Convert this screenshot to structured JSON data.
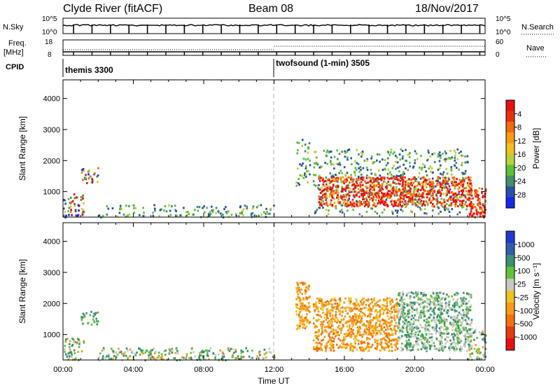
{
  "header": {
    "station": "Clyde River (fitACF)",
    "beam": "Beam 08",
    "date": "18/Nov/2017"
  },
  "noise_panel": {
    "left_label": "N.Sky",
    "left_ticks": [
      "10^5",
      "10^0"
    ],
    "right_label": "N.Search",
    "right_ticks": [
      "10^5",
      "10^0"
    ]
  },
  "freq_panel": {
    "left_label_1": "Freq.",
    "left_label_2": "[MHz]",
    "left_ticks": [
      "18",
      "8"
    ],
    "right_label": "Nave",
    "right_ticks": [
      "60",
      "0"
    ]
  },
  "cpid": {
    "label": "CPID",
    "programs": [
      {
        "name": "themis 3300",
        "start_hour": 0
      },
      {
        "name": "twofsound (1-min) 3505",
        "start_hour": 12
      }
    ]
  },
  "chart_data": [
    {
      "type": "heatmap",
      "quantity": "power",
      "xlabel": "",
      "ylabel": "Slant Range [km]",
      "xlim_hours": [
        0,
        24
      ],
      "ylim_km": [
        180,
        4600
      ],
      "yticks": [
        1000,
        2000,
        3000,
        4000
      ],
      "colorbar": {
        "label": "Power [dB]",
        "ticks": [
          "4",
          "8",
          "12",
          "16",
          "20",
          "24",
          "28"
        ],
        "colors": [
          "#1428e6",
          "#2b4fa8",
          "#3f8f6a",
          "#5cbf3a",
          "#b6d23a",
          "#f0c020",
          "#f59a18",
          "#f06a10",
          "#e53010",
          "#e61010"
        ]
      },
      "regions": [
        {
          "h0": 0.0,
          "h1": 1.2,
          "r0": 200,
          "r1": 950,
          "level": "mixed"
        },
        {
          "h0": 1.0,
          "h1": 2.0,
          "r0": 1300,
          "r1": 1800,
          "level": "mixed"
        },
        {
          "h0": 2.0,
          "h1": 12.0,
          "r0": 200,
          "r1": 600,
          "level": "weak"
        },
        {
          "h0": 13.2,
          "h1": 14.0,
          "r0": 1200,
          "r1": 2700,
          "level": "weak"
        },
        {
          "h0": 14.2,
          "h1": 23.0,
          "r0": 300,
          "r1": 2400,
          "level": "weak"
        },
        {
          "h0": 14.5,
          "h1": 23.2,
          "r0": 550,
          "r1": 1500,
          "level": "strong"
        },
        {
          "h0": 23.0,
          "h1": 24.0,
          "r0": 200,
          "r1": 1200,
          "level": "strong"
        }
      ]
    },
    {
      "type": "heatmap",
      "quantity": "velocity",
      "xlabel": "Time UT",
      "ylabel": "Slant Range [km]",
      "xlim_hours": [
        0,
        24
      ],
      "xticks": [
        "00:00",
        "04:00",
        "08:00",
        "12:00",
        "16:00",
        "20:00",
        "00:00"
      ],
      "ylim_km": [
        180,
        4600
      ],
      "yticks": [
        1000,
        2000,
        3000,
        4000
      ],
      "colorbar": {
        "label": "Velocity [m s⁻¹]",
        "ticks": [
          "1000",
          "500",
          "100",
          "25",
          "-25",
          "-100",
          "-500",
          "-1000"
        ],
        "colors": [
          "#1e3ad0",
          "#2f5fa8",
          "#3c8f70",
          "#62c33a",
          "#c8c8c0",
          "#f0c020",
          "#f59a18",
          "#f07010",
          "#e63a10",
          "#e61010"
        ]
      },
      "regions": [
        {
          "h0": 0.0,
          "h1": 1.2,
          "r0": 200,
          "r1": 900,
          "level": "mixed"
        },
        {
          "h0": 1.0,
          "h1": 2.0,
          "r0": 1300,
          "r1": 1800,
          "level": "green"
        },
        {
          "h0": 2.0,
          "h1": 12.0,
          "r0": 200,
          "r1": 600,
          "level": "mixed"
        },
        {
          "h0": 13.2,
          "h1": 14.0,
          "r0": 1200,
          "r1": 2700,
          "level": "orange"
        },
        {
          "h0": 14.2,
          "h1": 19.0,
          "r0": 500,
          "r1": 2200,
          "level": "orange"
        },
        {
          "h0": 19.0,
          "h1": 23.2,
          "r0": 500,
          "r1": 2400,
          "level": "green-grey"
        },
        {
          "h0": 23.0,
          "h1": 24.0,
          "r0": 200,
          "r1": 1200,
          "level": "mixed"
        }
      ]
    }
  ]
}
